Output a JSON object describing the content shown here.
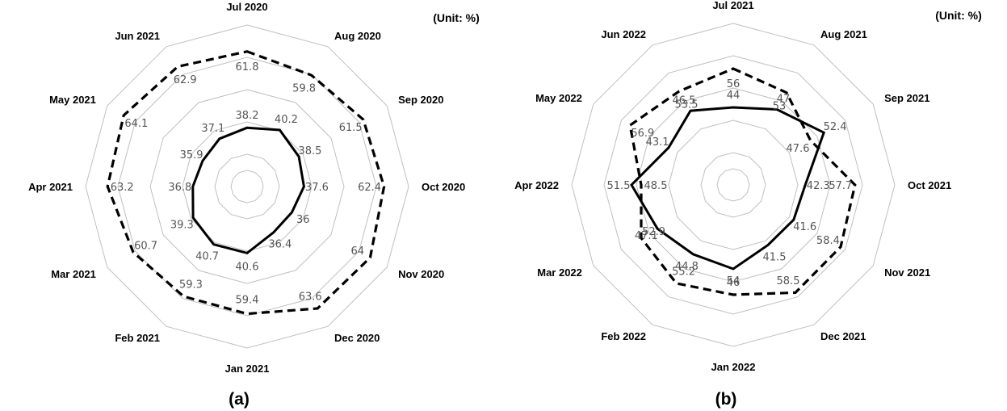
{
  "chart_data": [
    {
      "type": "radar",
      "panel_label": "(a)",
      "unit_label": "(Unit: %)",
      "rmin": 20,
      "rmax": 70,
      "grid_rings": 5,
      "categories": [
        "Jul 2020",
        "Aug 2020",
        "Sep 2020",
        "Oct 2020",
        "Nov 2020",
        "Dec 2020",
        "Jan 2021",
        "Feb 2021",
        "Mar 2021",
        "Apr 2021",
        "May 2021",
        "Jun 2021"
      ],
      "series": [
        {
          "style": "solid",
          "values": [
            38.2,
            40.2,
            38.5,
            37.6,
            36,
            36.4,
            40.6,
            40.7,
            39.3,
            36.8,
            35.9,
            37.1
          ]
        },
        {
          "style": "dashed",
          "values": [
            61.8,
            59.8,
            61.5,
            62.4,
            64,
            63.6,
            59.4,
            59.3,
            60.7,
            63.2,
            64.1,
            62.9
          ]
        }
      ]
    },
    {
      "type": "radar",
      "panel_label": "(b)",
      "unit_label": "(Unit: %)",
      "rmin": 20,
      "rmax": 70,
      "grid_rings": 5,
      "categories": [
        "Jul 2021",
        "Aug 2021",
        "Sep 2021",
        "Oct 2021",
        "Nov 2021",
        "Dec 2021",
        "Jan 2022",
        "Feb 2022",
        "Mar 2022",
        "Apr 2022",
        "May 2022",
        "Jun 2022"
      ],
      "series": [
        {
          "style": "solid",
          "values": [
            44,
            47,
            52.4,
            42.3,
            41.6,
            41.5,
            46,
            44.8,
            47.1,
            51.5,
            43.1,
            46.5
          ]
        },
        {
          "style": "dashed",
          "values": [
            56,
            53,
            47.6,
            57.7,
            58.4,
            58.5,
            54,
            55.2,
            52.9,
            48.5,
            56.9,
            53.5
          ]
        }
      ]
    }
  ]
}
